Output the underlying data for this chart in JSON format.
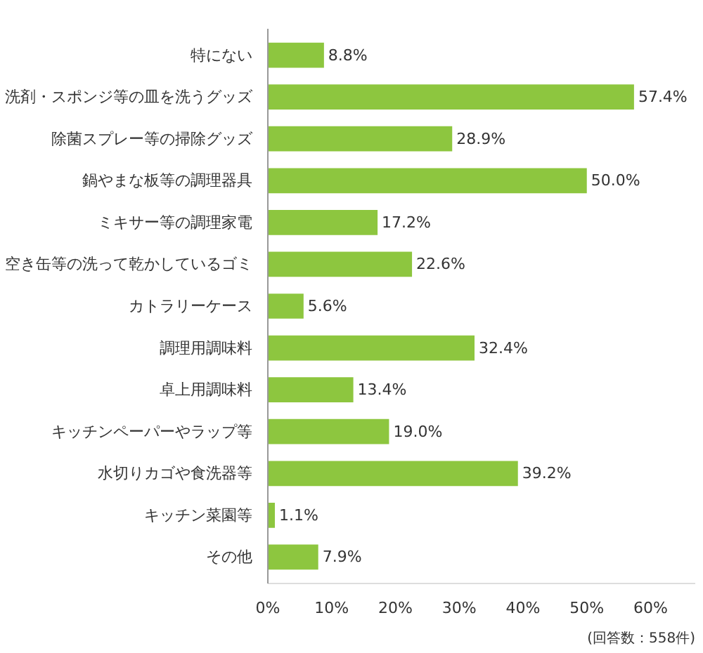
{
  "chart_data": {
    "type": "bar",
    "orientation": "horizontal",
    "categories": [
      "特にない",
      "洗剤・スポンジ等の皿を洗うグッズ",
      "除菌スプレー等の掃除グッズ",
      "鍋やまな板等の調理器具",
      "ミキサー等の調理家電",
      "空き缶等の洗って乾かしているゴミ",
      "カトラリーケース",
      "調理用調味料",
      "卓上用調味料",
      "キッチンペーパーやラップ等",
      "水切りカゴや食洗器等",
      "キッチン菜園等",
      "その他"
    ],
    "values": [
      8.8,
      57.4,
      28.9,
      50.0,
      17.2,
      22.6,
      5.6,
      32.4,
      13.4,
      19.0,
      39.2,
      1.1,
      7.9
    ],
    "value_labels": [
      "8.8%",
      "57.4%",
      "28.9%",
      "50.0%",
      "17.2%",
      "22.6%",
      "5.6%",
      "32.4%",
      "13.4%",
      "19.0%",
      "39.2%",
      "1.1%",
      "7.9%"
    ],
    "color": "#8dc63f",
    "xlim": [
      0,
      67
    ],
    "xticks": [
      {
        "value": 0,
        "label": "0%"
      },
      {
        "value": 10,
        "label": "10%"
      },
      {
        "value": 20,
        "label": "20%"
      },
      {
        "value": 30,
        "label": "30%"
      },
      {
        "value": 40,
        "label": "40%"
      },
      {
        "value": 50,
        "label": "50%"
      },
      {
        "value": 60,
        "label": "60%"
      }
    ],
    "annotations": [
      "(回答数：558件)"
    ],
    "grid": false
  }
}
